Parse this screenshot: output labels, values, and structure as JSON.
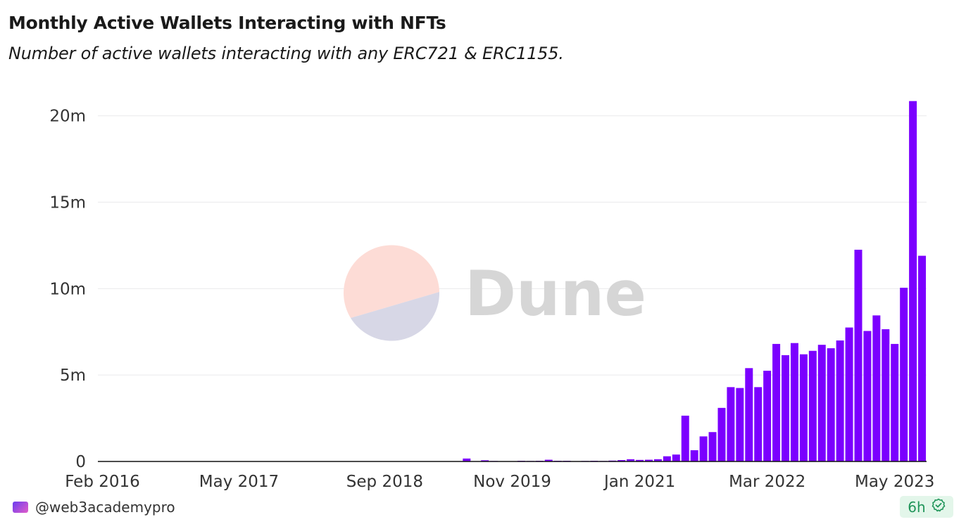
{
  "title": "Monthly Active Wallets Interacting with NFTs",
  "subtitle": "Number of active wallets interacting with any ERC721 & ERC1155.",
  "watermark": {
    "text": "Dune",
    "top_color": "#fddcd6",
    "bottom_color": "#d7d7e6",
    "text_color": "#d6d6d6"
  },
  "footer": {
    "author": "@web3academypro",
    "freshness": "6h",
    "freshness_icon": "check-badge-icon"
  },
  "colors": {
    "bar": "#7b00ff",
    "accent_green": "#21955a"
  },
  "chart_data": {
    "type": "bar",
    "x_start": "2016-02",
    "x_end": "2023-06",
    "x_tick_labels": [
      "Feb 2016",
      "May 2017",
      "Sep 2018",
      "Nov 2019",
      "Jan 2021",
      "Mar 2022",
      "May 2023"
    ],
    "y_tick_labels": [
      "0",
      "5m",
      "10m",
      "15m",
      "20m"
    ],
    "ylim": [
      0,
      21000000
    ],
    "y_ticks": [
      0,
      5000000,
      10000000,
      15000000,
      20000000
    ],
    "grid": true,
    "legend": "none",
    "xlabel": "",
    "ylabel": "",
    "values": [
      2000,
      2000,
      2000,
      2000,
      2000,
      2000,
      2000,
      2000,
      2000,
      2000,
      2000,
      2000,
      3000,
      3000,
      3000,
      3000,
      3000,
      3000,
      3000,
      3000,
      3000,
      3000,
      3000,
      3000,
      3000,
      3000,
      3000,
      3000,
      3000,
      3000,
      5000,
      10000,
      20000,
      15000,
      10000,
      10000,
      8000,
      8000,
      10000,
      15000,
      170000,
      15000,
      70000,
      30000,
      20000,
      20000,
      40000,
      30000,
      40000,
      100000,
      40000,
      40000,
      20000,
      30000,
      40000,
      30000,
      50000,
      80000,
      130000,
      90000,
      100000,
      130000,
      300000,
      400000,
      2650000,
      650000,
      1450000,
      1700000,
      3100000,
      4300000,
      4250000,
      5400000,
      4300000,
      5250000,
      6800000,
      6150000,
      6850000,
      6200000,
      6400000,
      6750000,
      6550000,
      7000000,
      7750000,
      12250000,
      7550000,
      8450000,
      7650000,
      6800000,
      10050000,
      20850000,
      11900000
    ]
  }
}
